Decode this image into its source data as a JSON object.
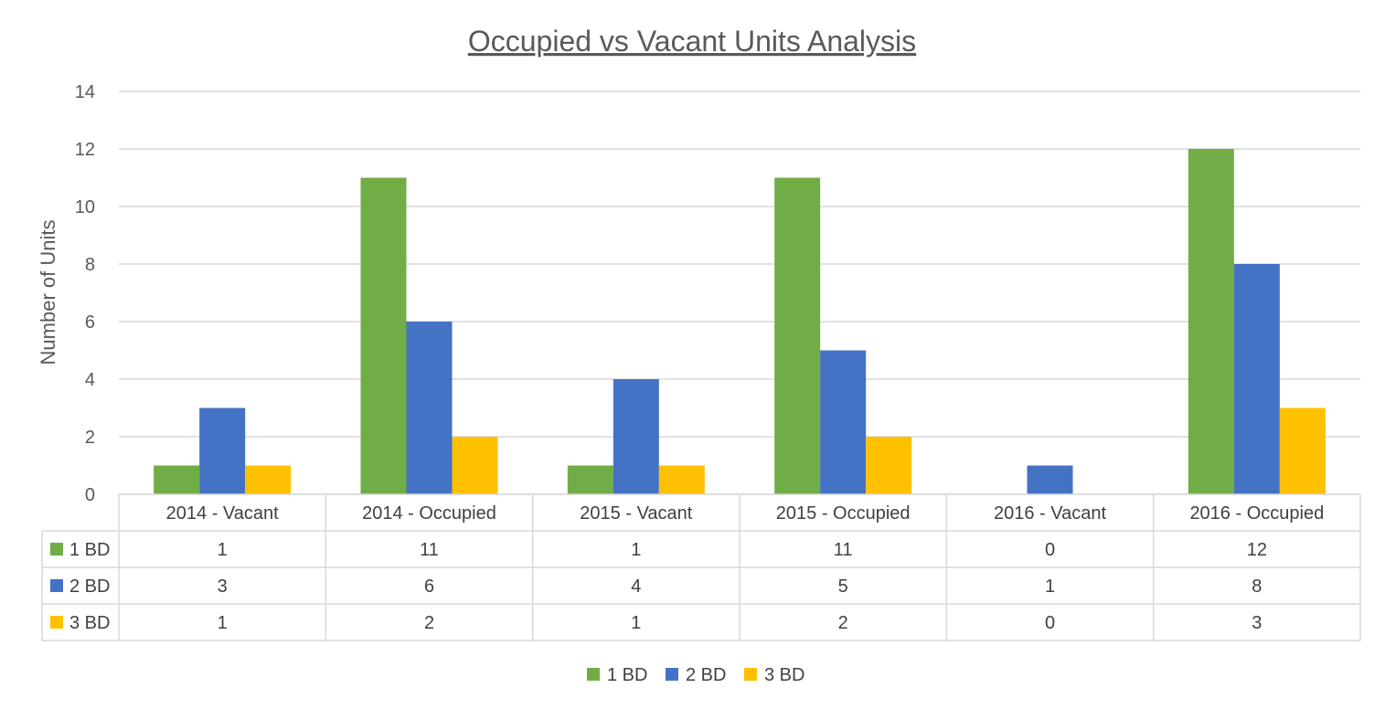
{
  "chart_data": {
    "type": "bar",
    "title": "Occupied vs Vacant Units Analysis",
    "xlabel": "",
    "ylabel": "Number of Units",
    "ylim": [
      0,
      14
    ],
    "yticks": [
      "0",
      "2",
      "4",
      "6",
      "8",
      "10",
      "12",
      "14"
    ],
    "categories": [
      "2014 - Vacant",
      "2014 - Occupied",
      "2015 - Vacant",
      "2015 - Occupied",
      "2016 - Vacant",
      "2016 - Occupied"
    ],
    "series": [
      {
        "name": "1 BD",
        "color": "#70ad47",
        "values": [
          1,
          11,
          1,
          11,
          0,
          12
        ]
      },
      {
        "name": "2 BD",
        "color": "#4472c4",
        "values": [
          3,
          6,
          4,
          5,
          1,
          8
        ]
      },
      {
        "name": "3 BD",
        "color": "#ffc000",
        "values": [
          1,
          2,
          1,
          2,
          0,
          3
        ]
      }
    ],
    "grid": true,
    "data_table": true,
    "legend_position": "bottom"
  }
}
